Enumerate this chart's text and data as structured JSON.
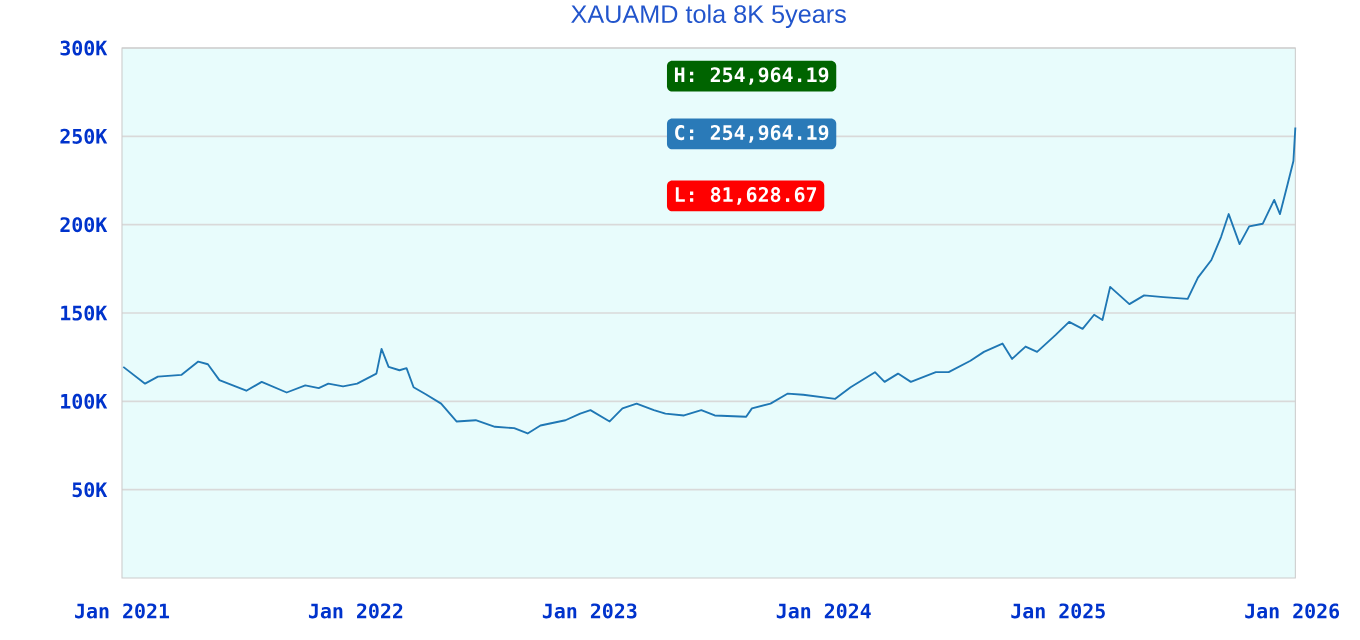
{
  "chart_data": {
    "type": "line",
    "title": "XAUAMD tola 8K 5years",
    "x": [
      "2021-01-03",
      "2021-02-06",
      "2021-02-26",
      "2021-04-04",
      "2021-04-30",
      "2021-05-15",
      "2021-06-02",
      "2021-07-14",
      "2021-08-07",
      "2021-09-15",
      "2021-10-14",
      "2021-11-04",
      "2021-11-19",
      "2021-12-12",
      "2022-01-03",
      "2022-01-24",
      "2022-02-02",
      "2022-02-10",
      "2022-02-21",
      "2022-03-10",
      "2022-03-21",
      "2022-04-01",
      "2022-04-20",
      "2022-05-14",
      "2022-06-07",
      "2022-07-07",
      "2022-08-06",
      "2022-09-05",
      "2022-09-26",
      "2022-10-16",
      "2022-11-24",
      "2022-12-17",
      "2023-01-02",
      "2023-02-01",
      "2023-02-21",
      "2023-03-15",
      "2023-04-11",
      "2023-04-29",
      "2023-05-28",
      "2023-06-24",
      "2023-07-15",
      "2023-09-02",
      "2023-09-11",
      "2023-10-10",
      "2023-11-06",
      "2023-11-30",
      "2024-01-19",
      "2024-02-12",
      "2024-03-21",
      "2024-04-05",
      "2024-04-26",
      "2024-05-16",
      "2024-06-24",
      "2024-07-14",
      "2024-08-17",
      "2024-09-07",
      "2024-10-06",
      "2024-10-21",
      "2024-11-11",
      "2024-11-29",
      "2024-12-28",
      "2025-01-18",
      "2025-02-08",
      "2025-02-26",
      "2025-03-11",
      "2025-03-23",
      "2025-04-22",
      "2025-05-15",
      "2025-06-14",
      "2025-07-22",
      "2025-08-07",
      "2025-08-28",
      "2025-09-12",
      "2025-09-24",
      "2025-10-11",
      "2025-10-26",
      "2025-11-16",
      "2025-12-04",
      "2025-12-13",
      "2025-12-25",
      "2026-01-03",
      "2026-01-06"
    ],
    "series": [
      {
        "color": "#1f77b4",
        "values": [
          119500,
          110000,
          114000,
          115000,
          122500,
          121000,
          112000,
          106000,
          111000,
          105000,
          109000,
          107500,
          110000,
          108500,
          110000,
          114000,
          115700,
          129700,
          119500,
          117600,
          118800,
          108000,
          104000,
          98700,
          88600,
          89300,
          85600,
          84800,
          81800,
          86300,
          89300,
          93000,
          95000,
          88600,
          96000,
          98700,
          95000,
          93000,
          92000,
          95000,
          92000,
          91300,
          96000,
          98700,
          104400,
          103700,
          101400,
          108000,
          116500,
          111000,
          115700,
          111000,
          116500,
          116500,
          123000,
          128000,
          132700,
          124000,
          131000,
          128000,
          137600,
          145000,
          141000,
          149000,
          146000,
          164800,
          155000,
          160000,
          159000,
          158000,
          170000,
          180000,
          193000,
          206000,
          189000,
          199000,
          200500,
          214000,
          206000,
          223000,
          236000,
          254964.19
        ]
      }
    ],
    "xlim": [
      "2021-01-01",
      "2026-01-06"
    ],
    "xticks": [
      {
        "value": "2021-01-01",
        "label": "Jan 2021"
      },
      {
        "value": "2022-01-01",
        "label": "Jan 2022"
      },
      {
        "value": "2023-01-01",
        "label": "Jan 2023"
      },
      {
        "value": "2024-01-01",
        "label": "Jan 2024"
      },
      {
        "value": "2025-01-01",
        "label": "Jan 2025"
      },
      {
        "value": "2026-01-01",
        "label": "Jan 2026"
      }
    ],
    "ylim": [
      0,
      300000
    ],
    "yticks": [
      {
        "value": 50000,
        "label": "50K"
      },
      {
        "value": 100000,
        "label": "100K"
      },
      {
        "value": 150000,
        "label": "150K"
      },
      {
        "value": 200000,
        "label": "200K"
      },
      {
        "value": 250000,
        "label": "250K"
      },
      {
        "value": 300000,
        "label": "300K"
      }
    ],
    "grid": "y",
    "marker": "none",
    "line_style": "solid",
    "annotations": [
      "H: 254,964.19",
      "C: 254,964.19",
      "L: 81,628.67"
    ]
  }
}
